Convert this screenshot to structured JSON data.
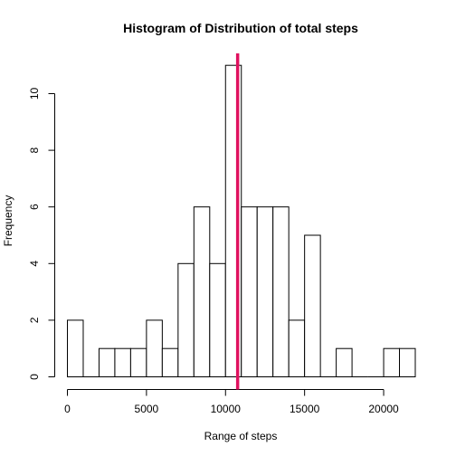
{
  "chart_data": {
    "type": "bar",
    "title": "Histogram of Distribution of total steps",
    "xlabel": "Range of steps",
    "ylabel": "Frequency",
    "bin_width": 1000,
    "bins": [
      {
        "from": 0,
        "to": 1000,
        "count": 2
      },
      {
        "from": 1000,
        "to": 2000,
        "count": 0
      },
      {
        "from": 2000,
        "to": 3000,
        "count": 1
      },
      {
        "from": 3000,
        "to": 4000,
        "count": 1
      },
      {
        "from": 4000,
        "to": 5000,
        "count": 1
      },
      {
        "from": 5000,
        "to": 6000,
        "count": 2
      },
      {
        "from": 6000,
        "to": 7000,
        "count": 1
      },
      {
        "from": 7000,
        "to": 8000,
        "count": 4
      },
      {
        "from": 8000,
        "to": 9000,
        "count": 6
      },
      {
        "from": 9000,
        "to": 10000,
        "count": 4
      },
      {
        "from": 10000,
        "to": 11000,
        "count": 11
      },
      {
        "from": 11000,
        "to": 12000,
        "count": 6
      },
      {
        "from": 12000,
        "to": 13000,
        "count": 6
      },
      {
        "from": 13000,
        "to": 14000,
        "count": 6
      },
      {
        "from": 14000,
        "to": 15000,
        "count": 2
      },
      {
        "from": 15000,
        "to": 16000,
        "count": 5
      },
      {
        "from": 16000,
        "to": 17000,
        "count": 0
      },
      {
        "from": 17000,
        "to": 18000,
        "count": 1
      },
      {
        "from": 18000,
        "to": 19000,
        "count": 0
      },
      {
        "from": 19000,
        "to": 20000,
        "count": 0
      },
      {
        "from": 20000,
        "to": 21000,
        "count": 1
      },
      {
        "from": 21000,
        "to": 22000,
        "count": 1
      }
    ],
    "x_ticks": [
      "0",
      "5000",
      "10000",
      "15000",
      "20000"
    ],
    "y_ticks": [
      "0",
      "2",
      "4",
      "6",
      "8",
      "10"
    ],
    "xlim": [
      0,
      22000
    ],
    "ylim": [
      0,
      11
    ],
    "reference_line": {
      "x": 10766,
      "color": "#e0115f"
    },
    "grid": false,
    "bar_fill": "#ffffff",
    "bar_stroke": "#000000"
  }
}
